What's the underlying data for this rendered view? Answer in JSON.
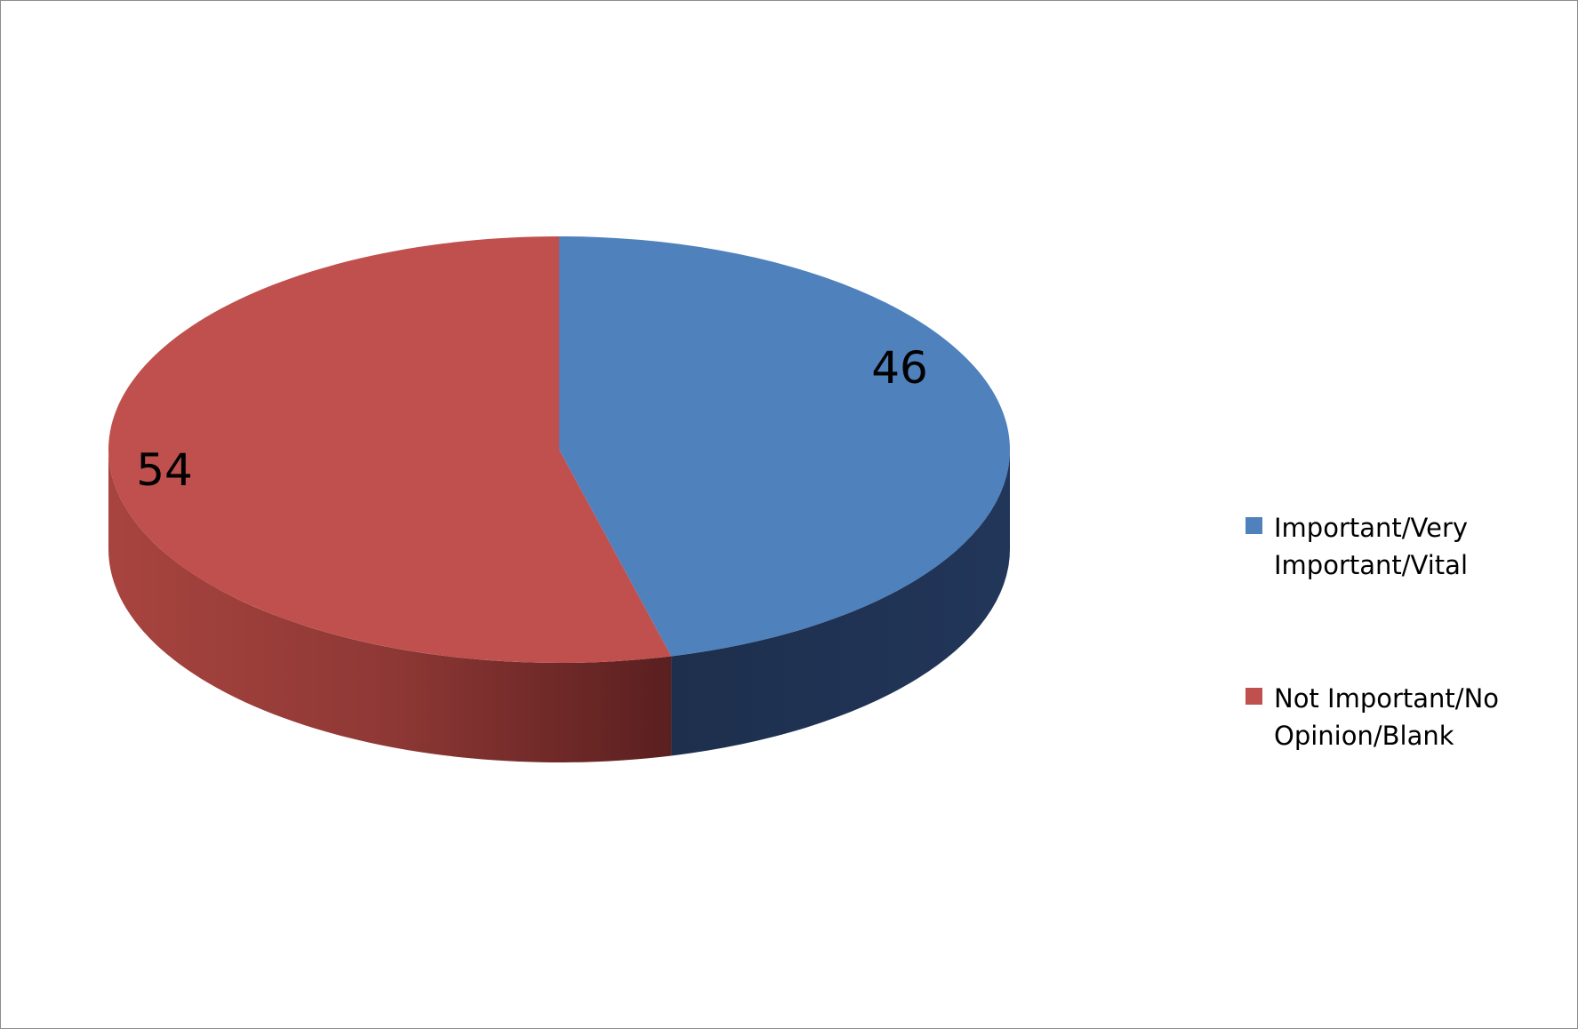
{
  "chart_data": {
    "type": "pie",
    "title": "",
    "categories": [
      "Important/Very Important/Vital",
      "Not Important/No Opinion/Blank"
    ],
    "values": [
      46,
      54
    ],
    "data_labels": [
      "46",
      "54"
    ],
    "colors": [
      "#4f81bd",
      "#c0504d"
    ],
    "side_colors": [
      "#1f324f",
      "#8c3330"
    ],
    "style": "3d",
    "legend": {
      "position": "right",
      "items": [
        {
          "label": "Important/Very Important/Vital",
          "color": "#4f81bd"
        },
        {
          "label": "Not Important/No Opinion/Blank",
          "color": "#c0504d"
        }
      ]
    }
  }
}
